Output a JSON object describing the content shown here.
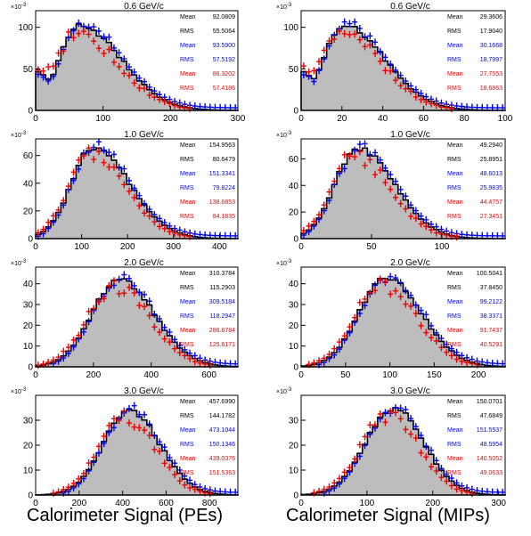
{
  "figure": {
    "xlabel_left": "Calorimeter Signal (PEs)",
    "xlabel_right": "Calorimeter Signal (MIPs)",
    "y_multiplier": "×10",
    "y_multiplier_exp": "-3"
  },
  "colors": {
    "fill": "#bdbdbd",
    "black_series": "#000000",
    "blue_series": "#0000ee",
    "red_series": "#ee0000"
  },
  "chart_data": [
    {
      "type": "histogram",
      "title": "0.6 GeV/c",
      "xlim": [
        0,
        300
      ],
      "ylim": [
        0,
        120
      ],
      "xticks": [
        0,
        100,
        200,
        300
      ],
      "yticks": [
        0,
        50,
        100
      ],
      "peak_x": 65,
      "peak_y": 102,
      "sigma_left": 30,
      "sigma_right": 62,
      "pedestal_y": 38,
      "stats": [
        {
          "series": "black",
          "label": "Mean",
          "value": "92.0809"
        },
        {
          "series": "black",
          "label": "RMS",
          "value": "55.5064"
        },
        {
          "series": "blue",
          "label": "Mean",
          "value": "93.5900"
        },
        {
          "series": "blue",
          "label": "RMS",
          "value": "57.5192"
        },
        {
          "series": "red",
          "label": "Mean",
          "value": "86.3202"
        },
        {
          "series": "red",
          "label": "RMS",
          "value": "57.4186"
        }
      ]
    },
    {
      "type": "histogram",
      "title": "0.6 GeV/c",
      "xlim": [
        0,
        100
      ],
      "ylim": [
        0,
        120
      ],
      "xticks": [
        0,
        20,
        40,
        60,
        80,
        100
      ],
      "yticks": [
        0,
        50,
        100
      ],
      "peak_x": 21,
      "peak_y": 102,
      "sigma_left": 10,
      "sigma_right": 20,
      "pedestal_y": 38,
      "stats": [
        {
          "series": "black",
          "label": "Mean",
          "value": "29.3606"
        },
        {
          "series": "black",
          "label": "RMS",
          "value": "17.9040"
        },
        {
          "series": "blue",
          "label": "Mean",
          "value": "30.1668"
        },
        {
          "series": "blue",
          "label": "RMS",
          "value": "18.7997"
        },
        {
          "series": "red",
          "label": "Mean",
          "value": "27.7553"
        },
        {
          "series": "red",
          "label": "RMS",
          "value": "18.6863"
        }
      ]
    },
    {
      "type": "histogram",
      "title": "1.0 GeV/c",
      "xlim": [
        0,
        440
      ],
      "ylim": [
        0,
        72
      ],
      "xticks": [
        0,
        100,
        200,
        300,
        400
      ],
      "yticks": [
        0,
        20,
        40,
        60
      ],
      "peak_x": 125,
      "peak_y": 65,
      "sigma_left": 48,
      "sigma_right": 80,
      "pedestal_y": 0,
      "stats": [
        {
          "series": "black",
          "label": "Mean",
          "value": "154.9563"
        },
        {
          "series": "black",
          "label": "RMS",
          "value": "80.6479"
        },
        {
          "series": "blue",
          "label": "Mean",
          "value": "151.3341"
        },
        {
          "series": "blue",
          "label": "RMS",
          "value": "79.8224"
        },
        {
          "series": "red",
          "label": "Mean",
          "value": "138.6853"
        },
        {
          "series": "red",
          "label": "RMS",
          "value": "84.1835"
        }
      ]
    },
    {
      "type": "histogram",
      "title": "1.0 GeV/c",
      "xlim": [
        0,
        145
      ],
      "ylim": [
        0,
        75
      ],
      "xticks": [
        0,
        50,
        100
      ],
      "yticks": [
        0,
        20,
        40,
        60
      ],
      "peak_x": 40,
      "peak_y": 68,
      "sigma_left": 16,
      "sigma_right": 26,
      "pedestal_y": 0,
      "stats": [
        {
          "series": "black",
          "label": "Mean",
          "value": "49.2940"
        },
        {
          "series": "black",
          "label": "RMS",
          "value": "25.8951"
        },
        {
          "series": "blue",
          "label": "Mean",
          "value": "48.6013"
        },
        {
          "series": "blue",
          "label": "RMS",
          "value": "25.9835"
        },
        {
          "series": "red",
          "label": "Mean",
          "value": "44.4757"
        },
        {
          "series": "red",
          "label": "RMS",
          "value": "27.3451"
        }
      ]
    },
    {
      "type": "histogram",
      "title": "2.0 GeV/c",
      "xlim": [
        0,
        700
      ],
      "ylim": [
        0,
        48
      ],
      "xticks": [
        0,
        200,
        400,
        600
      ],
      "yticks": [
        0,
        10,
        20,
        30,
        40
      ],
      "peak_x": 290,
      "peak_y": 42,
      "sigma_left": 95,
      "sigma_right": 120,
      "pedestal_y": 0,
      "stats": [
        {
          "series": "black",
          "label": "Mean",
          "value": "310.3784"
        },
        {
          "series": "black",
          "label": "RMS",
          "value": "115.2903"
        },
        {
          "series": "blue",
          "label": "Mean",
          "value": "309.5184"
        },
        {
          "series": "blue",
          "label": "RMS",
          "value": "118.2947"
        },
        {
          "series": "red",
          "label": "Mean",
          "value": "286.8784"
        },
        {
          "series": "red",
          "label": "RMS",
          "value": "125.6171"
        }
      ]
    },
    {
      "type": "histogram",
      "title": "2.0 GeV/c",
      "xlim": [
        0,
        230
      ],
      "ylim": [
        0,
        48
      ],
      "xticks": [
        0,
        50,
        100,
        150,
        200
      ],
      "yticks": [
        0,
        10,
        20,
        30,
        40
      ],
      "peak_x": 95,
      "peak_y": 43,
      "sigma_left": 30,
      "sigma_right": 40,
      "pedestal_y": 0,
      "stats": [
        {
          "series": "black",
          "label": "Mean",
          "value": "100.5041"
        },
        {
          "series": "black",
          "label": "RMS",
          "value": "37.8450"
        },
        {
          "series": "blue",
          "label": "Mean",
          "value": "99.2122"
        },
        {
          "series": "blue",
          "label": "RMS",
          "value": "38.3371"
        },
        {
          "series": "red",
          "label": "Mean",
          "value": "91.7437"
        },
        {
          "series": "red",
          "label": "RMS",
          "value": "40.5291"
        }
      ]
    },
    {
      "type": "histogram",
      "title": "3.0 GeV/c",
      "xlim": [
        0,
        930
      ],
      "ylim": [
        0,
        40
      ],
      "xticks": [
        0,
        200,
        400,
        600,
        800
      ],
      "yticks": [
        0,
        10,
        20,
        30
      ],
      "peak_x": 430,
      "peak_y": 34,
      "sigma_left": 120,
      "sigma_right": 140,
      "pedestal_y": 0,
      "stats": [
        {
          "series": "black",
          "label": "Mean",
          "value": "457.6990"
        },
        {
          "series": "black",
          "label": "RMS",
          "value": "144.1782"
        },
        {
          "series": "blue",
          "label": "Mean",
          "value": "473.1044"
        },
        {
          "series": "blue",
          "label": "RMS",
          "value": "150.1346"
        },
        {
          "series": "red",
          "label": "Mean",
          "value": "439.0376"
        },
        {
          "series": "red",
          "label": "RMS",
          "value": "151.5363"
        }
      ]
    },
    {
      "type": "histogram",
      "title": "3.0 GeV/c",
      "xlim": [
        0,
        310
      ],
      "ylim": [
        0,
        40
      ],
      "xticks": [
        0,
        100,
        200,
        300
      ],
      "yticks": [
        0,
        10,
        20,
        30
      ],
      "peak_x": 140,
      "peak_y": 35,
      "sigma_left": 42,
      "sigma_right": 46,
      "pedestal_y": 0,
      "stats": [
        {
          "series": "black",
          "label": "Mean",
          "value": "150.0701"
        },
        {
          "series": "black",
          "label": "RMS",
          "value": "47.6849"
        },
        {
          "series": "blue",
          "label": "Mean",
          "value": "151.5537"
        },
        {
          "series": "blue",
          "label": "RMS",
          "value": "48.5954"
        },
        {
          "series": "red",
          "label": "Mean",
          "value": "140.5052"
        },
        {
          "series": "red",
          "label": "RMS",
          "value": "49.0633"
        }
      ]
    }
  ]
}
